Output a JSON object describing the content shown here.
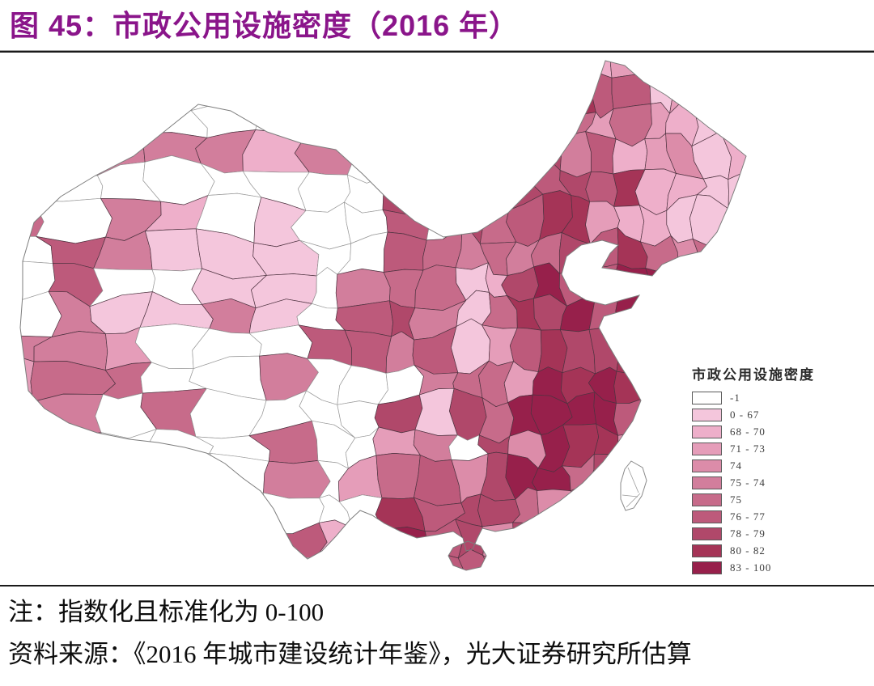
{
  "figure": {
    "title": "图 45：市政公用设施密度（2016 年）",
    "title_color": "#8a158a"
  },
  "legend": {
    "title": "市政公用设施密度",
    "items": [
      {
        "label": "-1",
        "color": "#ffffff"
      },
      {
        "label": "0 - 67",
        "color": "#f4c6dc"
      },
      {
        "label": "68 - 70",
        "color": "#eeafca"
      },
      {
        "label": "71 - 73",
        "color": "#e59db9"
      },
      {
        "label": "74",
        "color": "#dc8ca9"
      },
      {
        "label": "75 - 74",
        "color": "#d27e9c"
      },
      {
        "label": "75",
        "color": "#c76b8a"
      },
      {
        "label": "76 - 77",
        "color": "#bd5a7b"
      },
      {
        "label": "78 - 79",
        "color": "#b0486a"
      },
      {
        "label": "80 - 82",
        "color": "#a53457"
      },
      {
        "label": "83 - 100",
        "color": "#97204b"
      }
    ]
  },
  "notes": {
    "note": "注：指数化且标准化为 0-100",
    "source": "资料来源：《2016 年城市建设统计年鉴》，光大证券研究所估算"
  },
  "chart_data": {
    "type": "heatmap",
    "subtype": "choropleth-map",
    "region": "China, prefecture-level divisions (incl. Hainan, Taiwan outline)",
    "title": "市政公用设施密度（2016 年）",
    "legend_title": "市政公用设施密度",
    "legend_position": "right",
    "value_range": [
      0,
      100
    ],
    "no_data_class": "-1",
    "classes": [
      {
        "label": "-1",
        "color": "#ffffff"
      },
      {
        "label": "0 - 67",
        "color": "#f4c6dc"
      },
      {
        "label": "68 - 70",
        "color": "#eeafca"
      },
      {
        "label": "71 - 73",
        "color": "#e59db9"
      },
      {
        "label": "74",
        "color": "#dc8ca9"
      },
      {
        "label": "75 - 74",
        "color": "#d27e9c"
      },
      {
        "label": "75",
        "color": "#c76b8a"
      },
      {
        "label": "76 - 77",
        "color": "#bd5a7b"
      },
      {
        "label": "78 - 79",
        "color": "#b0486a"
      },
      {
        "label": "80 - 82",
        "color": "#a53457"
      },
      {
        "label": "83 - 100",
        "color": "#97204b"
      }
    ]
  }
}
